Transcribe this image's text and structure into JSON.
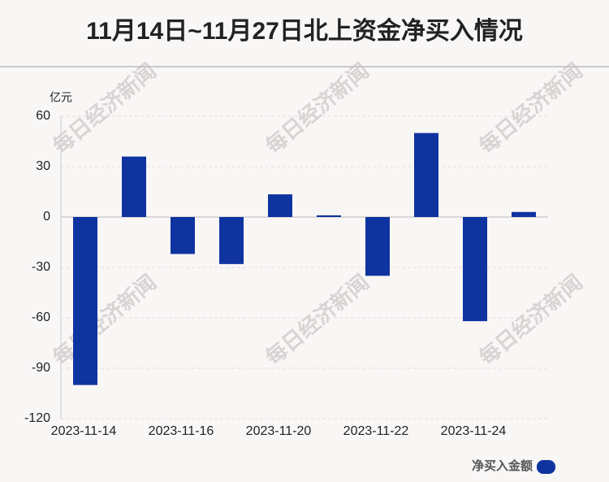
{
  "chart_data": {
    "type": "bar",
    "title": "11月14日~11月27日北上资金净买入情况",
    "y_unit": "亿元",
    "watermark": "每日经济新闻",
    "categories": [
      "2023-11-14",
      null,
      "2023-11-16",
      null,
      "2023-11-20",
      null,
      "2023-11-22",
      null,
      "2023-11-24",
      null
    ],
    "series": [
      {
        "name": "净买入金额",
        "color": "#0f34a0",
        "values": [
          -100,
          36,
          -22,
          -28,
          13.5,
          1,
          -35,
          50,
          -62,
          3
        ]
      }
    ],
    "ylim": [
      -120,
      60
    ],
    "yticks": [
      -120,
      -90,
      -60,
      -30,
      0,
      30,
      60
    ],
    "grid": true
  }
}
